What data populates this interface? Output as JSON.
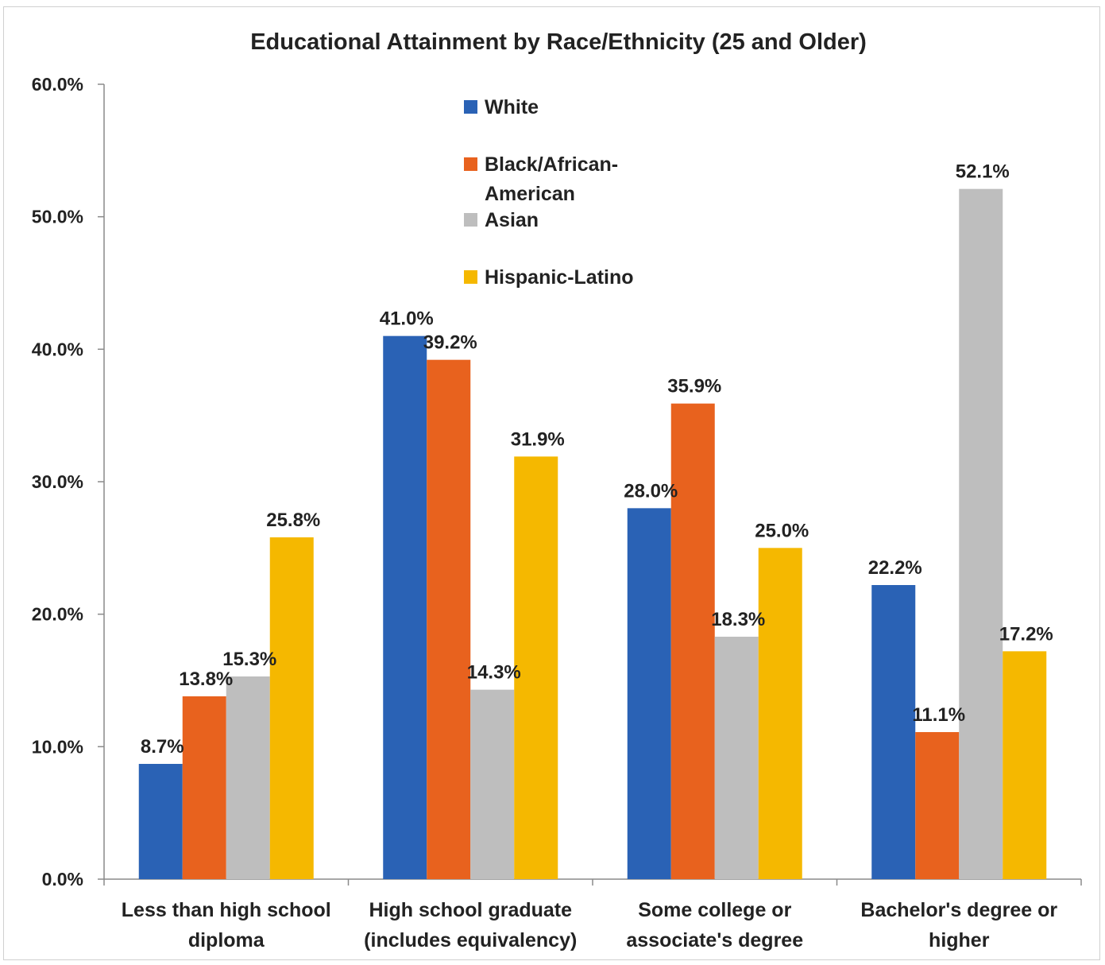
{
  "chart_data": {
    "type": "bar",
    "title": "Educational Attainment by Race/Ethnicity (25 and Older)",
    "categories": [
      [
        "Less than high school",
        "diploma"
      ],
      [
        "High school graduate",
        "(includes equivalency)"
      ],
      [
        "Some college or",
        "associate's degree"
      ],
      [
        "Bachelor's degree or",
        "higher"
      ]
    ],
    "series": [
      {
        "name": "White",
        "color": "#2a62b5",
        "values": [
          8.7,
          41.0,
          28.0,
          22.2
        ],
        "labels": [
          "8.7%",
          "41.0%",
          "28.0%",
          "22.2%"
        ]
      },
      {
        "name": "Black/African-American",
        "legend_lines": [
          "Black/African-",
          "American"
        ],
        "color": "#e8621e",
        "values": [
          13.8,
          39.2,
          35.9,
          11.1
        ],
        "labels": [
          "13.8%",
          "39.2%",
          "35.9%",
          "11.1%"
        ]
      },
      {
        "name": "Asian",
        "color": "#bebebe",
        "values": [
          15.3,
          14.3,
          18.3,
          52.1
        ],
        "labels": [
          "15.3%",
          "14.3%",
          "18.3%",
          "52.1%"
        ]
      },
      {
        "name": "Hispanic-Latino",
        "color": "#f5b800",
        "values": [
          25.8,
          31.9,
          25.0,
          17.2
        ],
        "labels": [
          "25.8%",
          "31.9%",
          "25.0%",
          "17.2%"
        ]
      }
    ],
    "y_ticks": [
      "0.0%",
      "10.0%",
      "20.0%",
      "30.0%",
      "40.0%",
      "50.0%",
      "60.0%"
    ],
    "ylim": [
      0,
      60
    ],
    "grid": false,
    "legend_position": "top-center"
  }
}
